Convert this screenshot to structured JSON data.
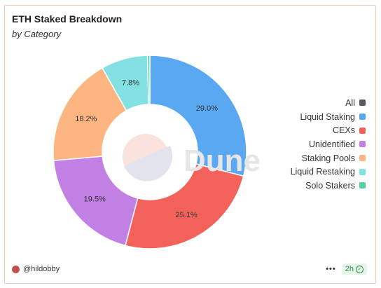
{
  "header": {
    "title": "ETH Staked Breakdown",
    "subtitle": "by Category"
  },
  "watermark": "Dune",
  "footer": {
    "author": "@hildobby",
    "refresh": "2h",
    "menu": "•••"
  },
  "legend": [
    {
      "label": "All",
      "color": "#555a66"
    },
    {
      "label": "Liquid Staking",
      "color": "#5aa8f2"
    },
    {
      "label": "CEXs",
      "color": "#f2625b"
    },
    {
      "label": "Unidentified",
      "color": "#c27fe4"
    },
    {
      "label": "Staking Pools",
      "color": "#fdb682"
    },
    {
      "label": "Liquid Restaking",
      "color": "#83e0e3"
    },
    {
      "label": "Solo Stakers",
      "color": "#4ed3a0"
    }
  ],
  "chart_data": {
    "type": "pie",
    "title": "ETH Staked Breakdown",
    "subtitle": "by Category",
    "categories": [
      "Liquid Staking",
      "CEXs",
      "Unidentified",
      "Staking Pools",
      "Liquid Restaking",
      "Solo Stakers"
    ],
    "values": [
      29.0,
      25.1,
      19.5,
      18.2,
      7.8,
      0.4
    ],
    "labels": [
      "29.0%",
      "25.1%",
      "19.5%",
      "18.2%",
      "7.8%",
      ""
    ],
    "colors": [
      "#5aa8f2",
      "#f2625b",
      "#c27fe4",
      "#fdb682",
      "#83e0e3",
      "#4ed3a0"
    ],
    "legend_position": "right"
  }
}
